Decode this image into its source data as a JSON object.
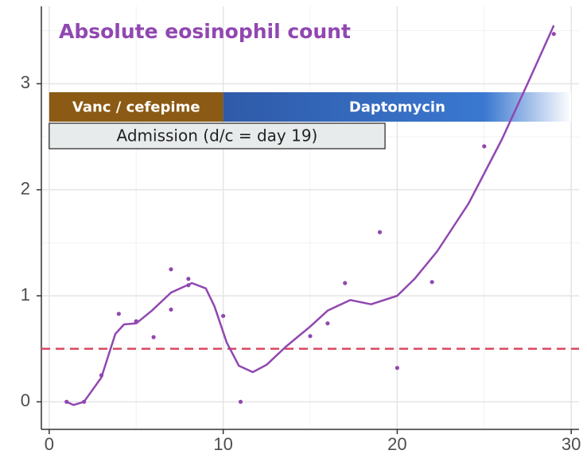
{
  "chart_data": {
    "type": "scatter",
    "title": "Absolute eosinophil count",
    "color": "#9147b0",
    "xlim": [
      -0.45,
      30.45
    ],
    "ylim": [
      -0.26,
      3.73
    ],
    "xticks": [
      0,
      10,
      20,
      30
    ],
    "yticks": [
      0,
      1,
      2,
      3
    ],
    "x_minor_ticks": [
      5,
      15,
      25
    ],
    "y_minor_ticks": [
      0.5,
      1.5,
      2.5,
      3.5
    ],
    "grid": true,
    "x": [
      1,
      2,
      3,
      4,
      5,
      6,
      7,
      7,
      8,
      8,
      10,
      11,
      15,
      16,
      17,
      19,
      20,
      22,
      25,
      29
    ],
    "values": [
      0,
      0,
      0.25,
      0.83,
      0.76,
      0.61,
      1.25,
      0.87,
      1.16,
      1.1,
      0.81,
      0,
      0.62,
      0.74,
      1.12,
      1.6,
      0.32,
      1.13,
      2.41,
      3.47
    ],
    "smooth": {
      "x": [
        1,
        1.4,
        2,
        3,
        3.8,
        4.3,
        5,
        5.9,
        7,
        8.2,
        9,
        9.5,
        10.2,
        10.9,
        11.7,
        12.5,
        13.6,
        15,
        16,
        17.3,
        18.5,
        20,
        21,
        22.3,
        24.1,
        26,
        27.6,
        29
      ],
      "values": [
        0,
        -0.03,
        0,
        0.23,
        0.64,
        0.73,
        0.74,
        0.86,
        1.03,
        1.12,
        1.07,
        0.9,
        0.56,
        0.34,
        0.28,
        0.35,
        0.52,
        0.71,
        0.86,
        0.96,
        0.92,
        1.0,
        1.16,
        1.42,
        1.87,
        2.47,
        3.04,
        3.55
      ]
    },
    "threshold": {
      "value": 0.5,
      "color": "#d9485f"
    },
    "annotations": [
      {
        "label": "Vanc / cefepime",
        "start": 0,
        "end": 10,
        "color": "#8b5a14"
      },
      {
        "label": "Daptomycin",
        "start": 10,
        "end": 30,
        "color": "#2f5aa8"
      },
      {
        "label": "Admission (d/c = day 19)",
        "start": 0,
        "end": 19.3,
        "color": "#e8ebec"
      }
    ]
  }
}
